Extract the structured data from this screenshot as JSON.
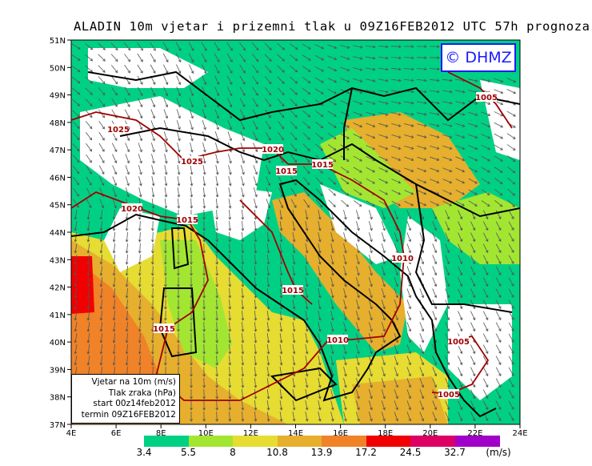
{
  "title": "ALADIN 10m vjetar i prizemni tlak u 09Z16FEB2012 UTC 57h prognoza",
  "logo": "© DHMZ",
  "axes": {
    "lat_labels": [
      "51N",
      "50N",
      "49N",
      "48N",
      "47N",
      "46N",
      "45N",
      "44N",
      "43N",
      "42N",
      "41N",
      "40N",
      "39N",
      "38N",
      "37N"
    ],
    "lon_labels": [
      "4E",
      "6E",
      "8E",
      "10E",
      "12E",
      "14E",
      "16E",
      "18E",
      "20E",
      "22E",
      "24E"
    ]
  },
  "legend_box": {
    "line1": "Vjetar na 10m (m/s)",
    "line2": "Tlak zraka (hPa)",
    "line3": "start 00z14feb2012",
    "line4": "termin 09Z16FEB2012"
  },
  "colorbar": {
    "unit": "(m/s)",
    "thresholds": [
      "3.4",
      "5.5",
      "8",
      "10.8",
      "13.9",
      "17.2",
      "24.5",
      "32.7"
    ],
    "colors": [
      "#00d084",
      "#a2e632",
      "#e6dc32",
      "#e6af2d",
      "#f08228",
      "#f00000",
      "#dc0064",
      "#a000c8"
    ]
  },
  "isobar_labels": [
    "1025",
    "1025",
    "1020",
    "1020",
    "1015",
    "1015",
    "1015",
    "1015",
    "1015",
    "1010",
    "1010",
    "1005",
    "1005",
    "1005"
  ],
  "colors": {
    "isobar": "#a00000",
    "coast": "#000000",
    "arrow": "#555555"
  }
}
